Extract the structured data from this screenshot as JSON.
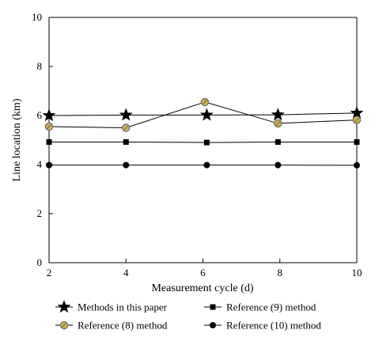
{
  "chart_data": {
    "type": "line",
    "title": "",
    "xlabel": "Measurement cycle (d)",
    "ylabel": "Line location (km)",
    "xlim": [
      2,
      10
    ],
    "ylim": [
      0,
      10
    ],
    "xticks": [
      "2",
      "4",
      "6",
      "8",
      "10"
    ],
    "yticks": [
      "0",
      "2",
      "4",
      "6",
      "8",
      "10"
    ],
    "grid": false,
    "legend_position": "bottom",
    "series": [
      {
        "name": "Methods in this paper",
        "marker": "star",
        "color": "#000000",
        "fill": "#000000",
        "x": [
          2,
          4,
          6.1,
          7.95,
          10
        ],
        "y": [
          6.0,
          6.02,
          6.02,
          6.03,
          6.1
        ]
      },
      {
        "name": "Reference (8) method",
        "marker": "circle-slash",
        "color": "#000000",
        "fill": "#d4b14a",
        "x": [
          2,
          4,
          6.05,
          7.95,
          10
        ],
        "y": [
          5.55,
          5.5,
          6.55,
          5.68,
          5.82
        ]
      },
      {
        "name": "Reference (9) method",
        "marker": "square",
        "color": "#000000",
        "fill": "#000000",
        "x": [
          2,
          4,
          6.1,
          7.95,
          10
        ],
        "y": [
          4.92,
          4.92,
          4.9,
          4.92,
          4.92
        ]
      },
      {
        "name": "Reference (10) method",
        "marker": "circle",
        "color": "#000000",
        "fill": "#000000",
        "x": [
          2,
          4,
          6.1,
          7.95,
          10
        ],
        "y": [
          3.98,
          3.98,
          3.98,
          3.98,
          3.97
        ]
      }
    ]
  }
}
